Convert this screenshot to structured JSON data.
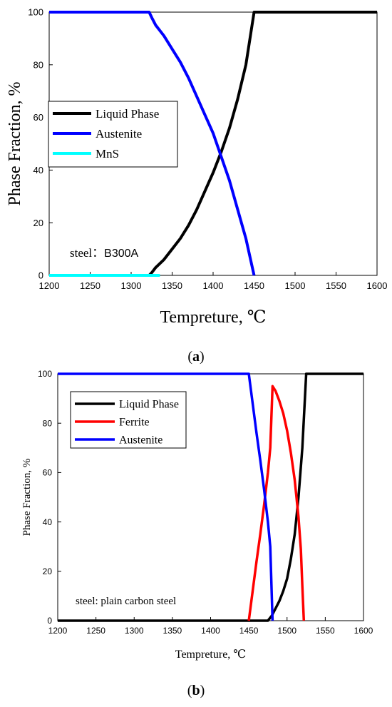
{
  "chart_data": [
    {
      "type": "line",
      "panel_label": "a",
      "xlabel": "Tempreture, ℃",
      "ylabel": "Phase Fraction, %",
      "xlim": [
        1200,
        1600
      ],
      "ylim": [
        0,
        100
      ],
      "xticks": [
        1200,
        1250,
        1300,
        1350,
        1400,
        1450,
        1500,
        1550,
        1600
      ],
      "yticks": [
        0,
        20,
        40,
        60,
        80,
        100
      ],
      "grid": false,
      "legend_position": "middle-left",
      "annotation": {
        "prefix": "steel：",
        "value": "B300A"
      },
      "series": [
        {
          "name": "Liquid Phase",
          "color": "#000000",
          "x": [
            1200,
            1322,
            1325,
            1330,
            1340,
            1350,
            1360,
            1370,
            1380,
            1390,
            1400,
            1410,
            1420,
            1430,
            1440,
            1450,
            1600
          ],
          "y": [
            0,
            0,
            1,
            3,
            6,
            10,
            14,
            19,
            25,
            32,
            39,
            47,
            56,
            67,
            80,
            100,
            100
          ]
        },
        {
          "name": "Austenite",
          "color": "#0000ff",
          "x": [
            1200,
            1322,
            1325,
            1330,
            1340,
            1350,
            1360,
            1370,
            1380,
            1390,
            1400,
            1410,
            1420,
            1430,
            1440,
            1450
          ],
          "y": [
            100,
            100,
            98,
            95,
            91,
            86,
            81,
            75,
            68,
            61,
            54,
            45,
            36,
            25,
            14,
            0
          ]
        },
        {
          "name": "MnS",
          "color": "#00ffff",
          "x": [
            1200,
            1335
          ],
          "y": [
            0,
            0
          ]
        }
      ]
    },
    {
      "type": "line",
      "panel_label": "b",
      "xlabel": "Tempreture, ℃",
      "ylabel": "Phase Fraction, %",
      "xlim": [
        1200,
        1600
      ],
      "ylim": [
        0,
        100
      ],
      "xticks": [
        1200,
        1250,
        1300,
        1350,
        1400,
        1450,
        1500,
        1550,
        1600
      ],
      "yticks": [
        0,
        20,
        40,
        60,
        80,
        100
      ],
      "grid": false,
      "legend_position": "top-left",
      "annotation": {
        "prefix": "steel: ",
        "value": "plain carbon steel"
      },
      "series": [
        {
          "name": "Liquid Phase",
          "color": "#000000",
          "x": [
            1200,
            1475,
            1480,
            1485,
            1490,
            1495,
            1500,
            1505,
            1510,
            1515,
            1520,
            1525,
            1600
          ],
          "y": [
            0,
            0,
            2,
            5,
            8,
            12,
            17,
            25,
            35,
            50,
            70,
            100,
            100
          ]
        },
        {
          "name": "Ferrite",
          "color": "#ff0000",
          "x": [
            1450,
            1455,
            1460,
            1465,
            1470,
            1475,
            1478,
            1481,
            1485,
            1490,
            1495,
            1500,
            1505,
            1510,
            1515,
            1518,
            1520,
            1522
          ],
          "y": [
            0,
            12,
            24,
            35,
            47,
            60,
            70,
            95,
            93,
            89,
            84,
            77,
            68,
            57,
            42,
            29,
            14,
            0
          ]
        },
        {
          "name": "Austenite",
          "color": "#0000ff",
          "x": [
            1200,
            1450,
            1455,
            1460,
            1465,
            1470,
            1475,
            1478,
            1481
          ],
          "y": [
            100,
            100,
            88,
            76,
            65,
            53,
            40,
            30,
            0
          ]
        }
      ]
    }
  ]
}
